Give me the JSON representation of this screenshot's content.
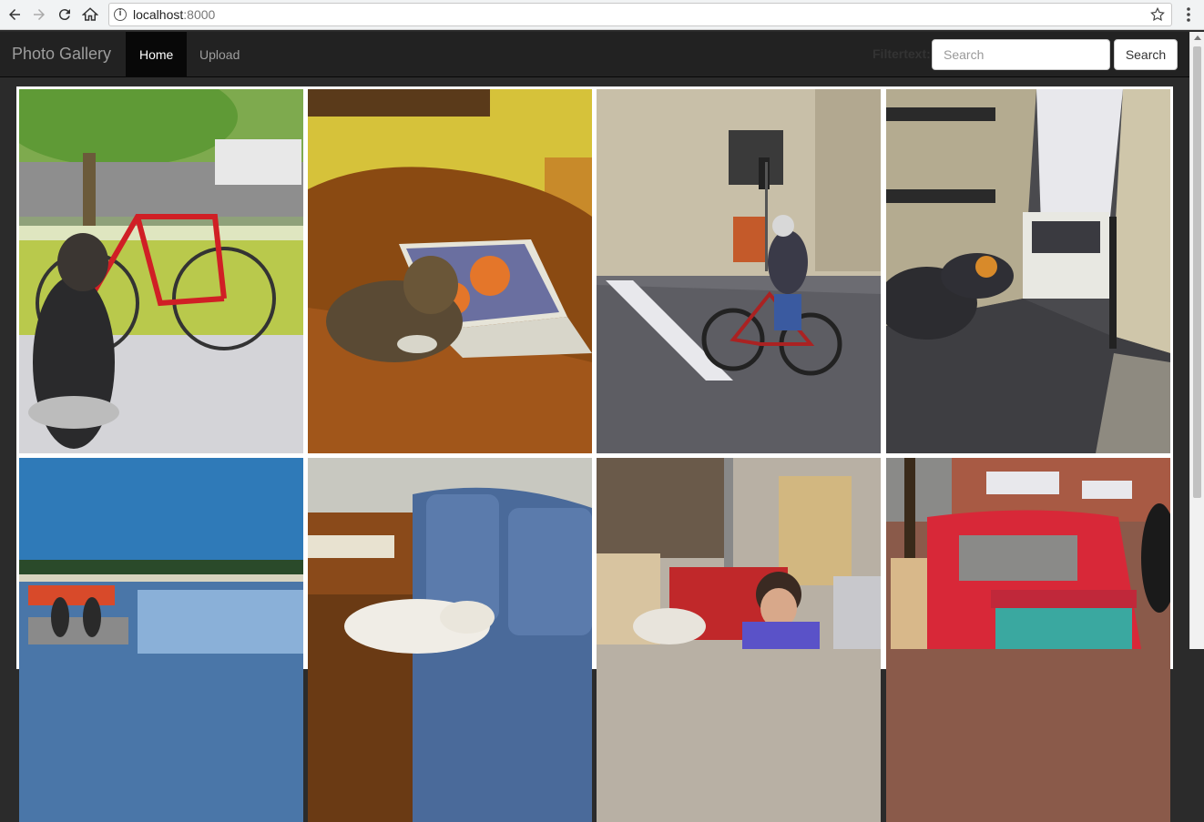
{
  "browser": {
    "url_host": "localhost",
    "url_port": ":8000"
  },
  "navbar": {
    "brand": "Photo Gallery",
    "items": [
      {
        "label": "Home",
        "active": true
      },
      {
        "label": "Upload",
        "active": false
      }
    ],
    "filter_label": "Filtertext:",
    "search_placeholder": "Search",
    "search_button": "Search"
  },
  "gallery": {
    "photos": [
      {
        "name": "photo-dog-bicycle"
      },
      {
        "name": "photo-cat-laptop"
      },
      {
        "name": "photo-cyclist-street"
      },
      {
        "name": "photo-street-truck"
      },
      {
        "name": "photo-boat-sea"
      },
      {
        "name": "photo-cats-couch"
      },
      {
        "name": "photo-woman-room"
      },
      {
        "name": "photo-red-truck"
      }
    ]
  },
  "colors": {
    "navbar_bg": "#222222",
    "active_bg": "#080808",
    "nav_text": "#9d9d9d"
  }
}
